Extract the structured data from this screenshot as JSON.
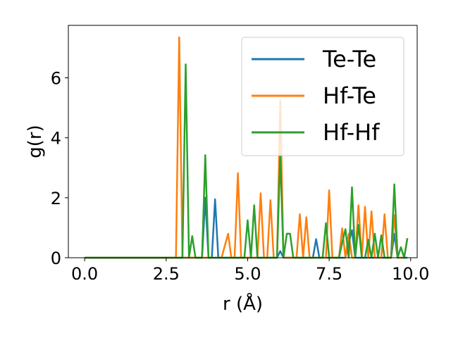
{
  "chart_data": {
    "type": "line",
    "xlabel": "r (Å)",
    "ylabel": "g(r)",
    "xlim": [
      -0.5,
      10.2
    ],
    "ylim": [
      0,
      7.75
    ],
    "xticks": [
      "0.0",
      "2.5",
      "5.0",
      "7.5",
      "10.0"
    ],
    "xtick_values": [
      0,
      2.5,
      5,
      7.5,
      10
    ],
    "yticks": [
      "0",
      "2",
      "4",
      "6"
    ],
    "ytick_values": [
      0,
      2,
      4,
      6
    ],
    "grid": false,
    "legend_position": "top-right",
    "series": [
      {
        "name": "Te-Te",
        "color": "#1f77b4",
        "x": [
          0,
          2.8,
          3.6,
          3.7,
          3.8,
          3.9,
          4.0,
          4.1,
          4.2,
          5.9,
          6.0,
          6.1,
          7.0,
          7.1,
          7.2,
          8.0,
          8.1,
          8.2,
          8.3,
          8.4,
          9.4,
          9.5,
          9.6,
          9.9
        ],
        "y": [
          0,
          0,
          0,
          2.0,
          0,
          0,
          1.95,
          0,
          0,
          0,
          0.22,
          0,
          0,
          0.62,
          0,
          0,
          0.5,
          0.92,
          0,
          0,
          0,
          0.8,
          0,
          0
        ]
      },
      {
        "name": "Hf-Te",
        "color": "#ff7f0e",
        "x": [
          0,
          2.8,
          2.9,
          3.0,
          4.2,
          4.4,
          4.5,
          4.6,
          4.7,
          4.8,
          5.3,
          5.4,
          5.5,
          5.6,
          5.7,
          5.8,
          5.9,
          6.0,
          6.1,
          6.5,
          6.6,
          6.7,
          6.8,
          6.9,
          7.4,
          7.5,
          7.6,
          7.8,
          7.9,
          8.0,
          8.1,
          8.2,
          8.3,
          8.4,
          8.5,
          8.6,
          8.7,
          8.8,
          8.9,
          9.1,
          9.2,
          9.3,
          9.4,
          9.5,
          9.6,
          9.7,
          9.8,
          9.9
        ],
        "y": [
          0,
          0,
          7.35,
          0,
          0,
          0.8,
          0,
          0,
          2.82,
          0,
          0,
          2.15,
          0,
          0,
          1.92,
          0,
          0,
          5.25,
          0,
          0,
          1.45,
          0,
          1.35,
          0,
          0,
          2.25,
          0,
          0,
          0.98,
          0,
          0.8,
          0,
          0,
          1.75,
          0,
          1.7,
          0,
          1.55,
          0,
          0,
          1.45,
          0,
          0,
          1.42,
          0,
          0,
          0,
          0.65
        ]
      },
      {
        "name": "Hf-Hf",
        "color": "#2ca02c",
        "x": [
          0,
          3.0,
          3.1,
          3.2,
          3.3,
          3.4,
          3.6,
          3.7,
          3.8,
          4.8,
          4.9,
          5.0,
          5.1,
          5.2,
          5.3,
          5.8,
          5.9,
          6.0,
          6.1,
          6.2,
          6.3,
          6.4,
          7.2,
          7.3,
          7.4,
          7.5,
          7.8,
          7.9,
          8.0,
          8.1,
          8.2,
          8.3,
          8.4,
          8.5,
          8.6,
          8.7,
          8.8,
          8.9,
          9.0,
          9.1,
          9.2,
          9.3,
          9.4,
          9.5,
          9.6,
          9.7,
          9.8,
          9.9
        ],
        "y": [
          0,
          0,
          6.45,
          0,
          0.72,
          0,
          0,
          3.42,
          0,
          0,
          0,
          1.25,
          0,
          1.75,
          0,
          0,
          0,
          3.45,
          0,
          0.8,
          0.8,
          0,
          0,
          0,
          1.15,
          0,
          0,
          0.5,
          0.95,
          0,
          2.35,
          0,
          1.1,
          0,
          0,
          0.6,
          0,
          0.8,
          0,
          0.75,
          0,
          0,
          0,
          2.45,
          0,
          0.35,
          0,
          0.65
        ]
      }
    ]
  }
}
